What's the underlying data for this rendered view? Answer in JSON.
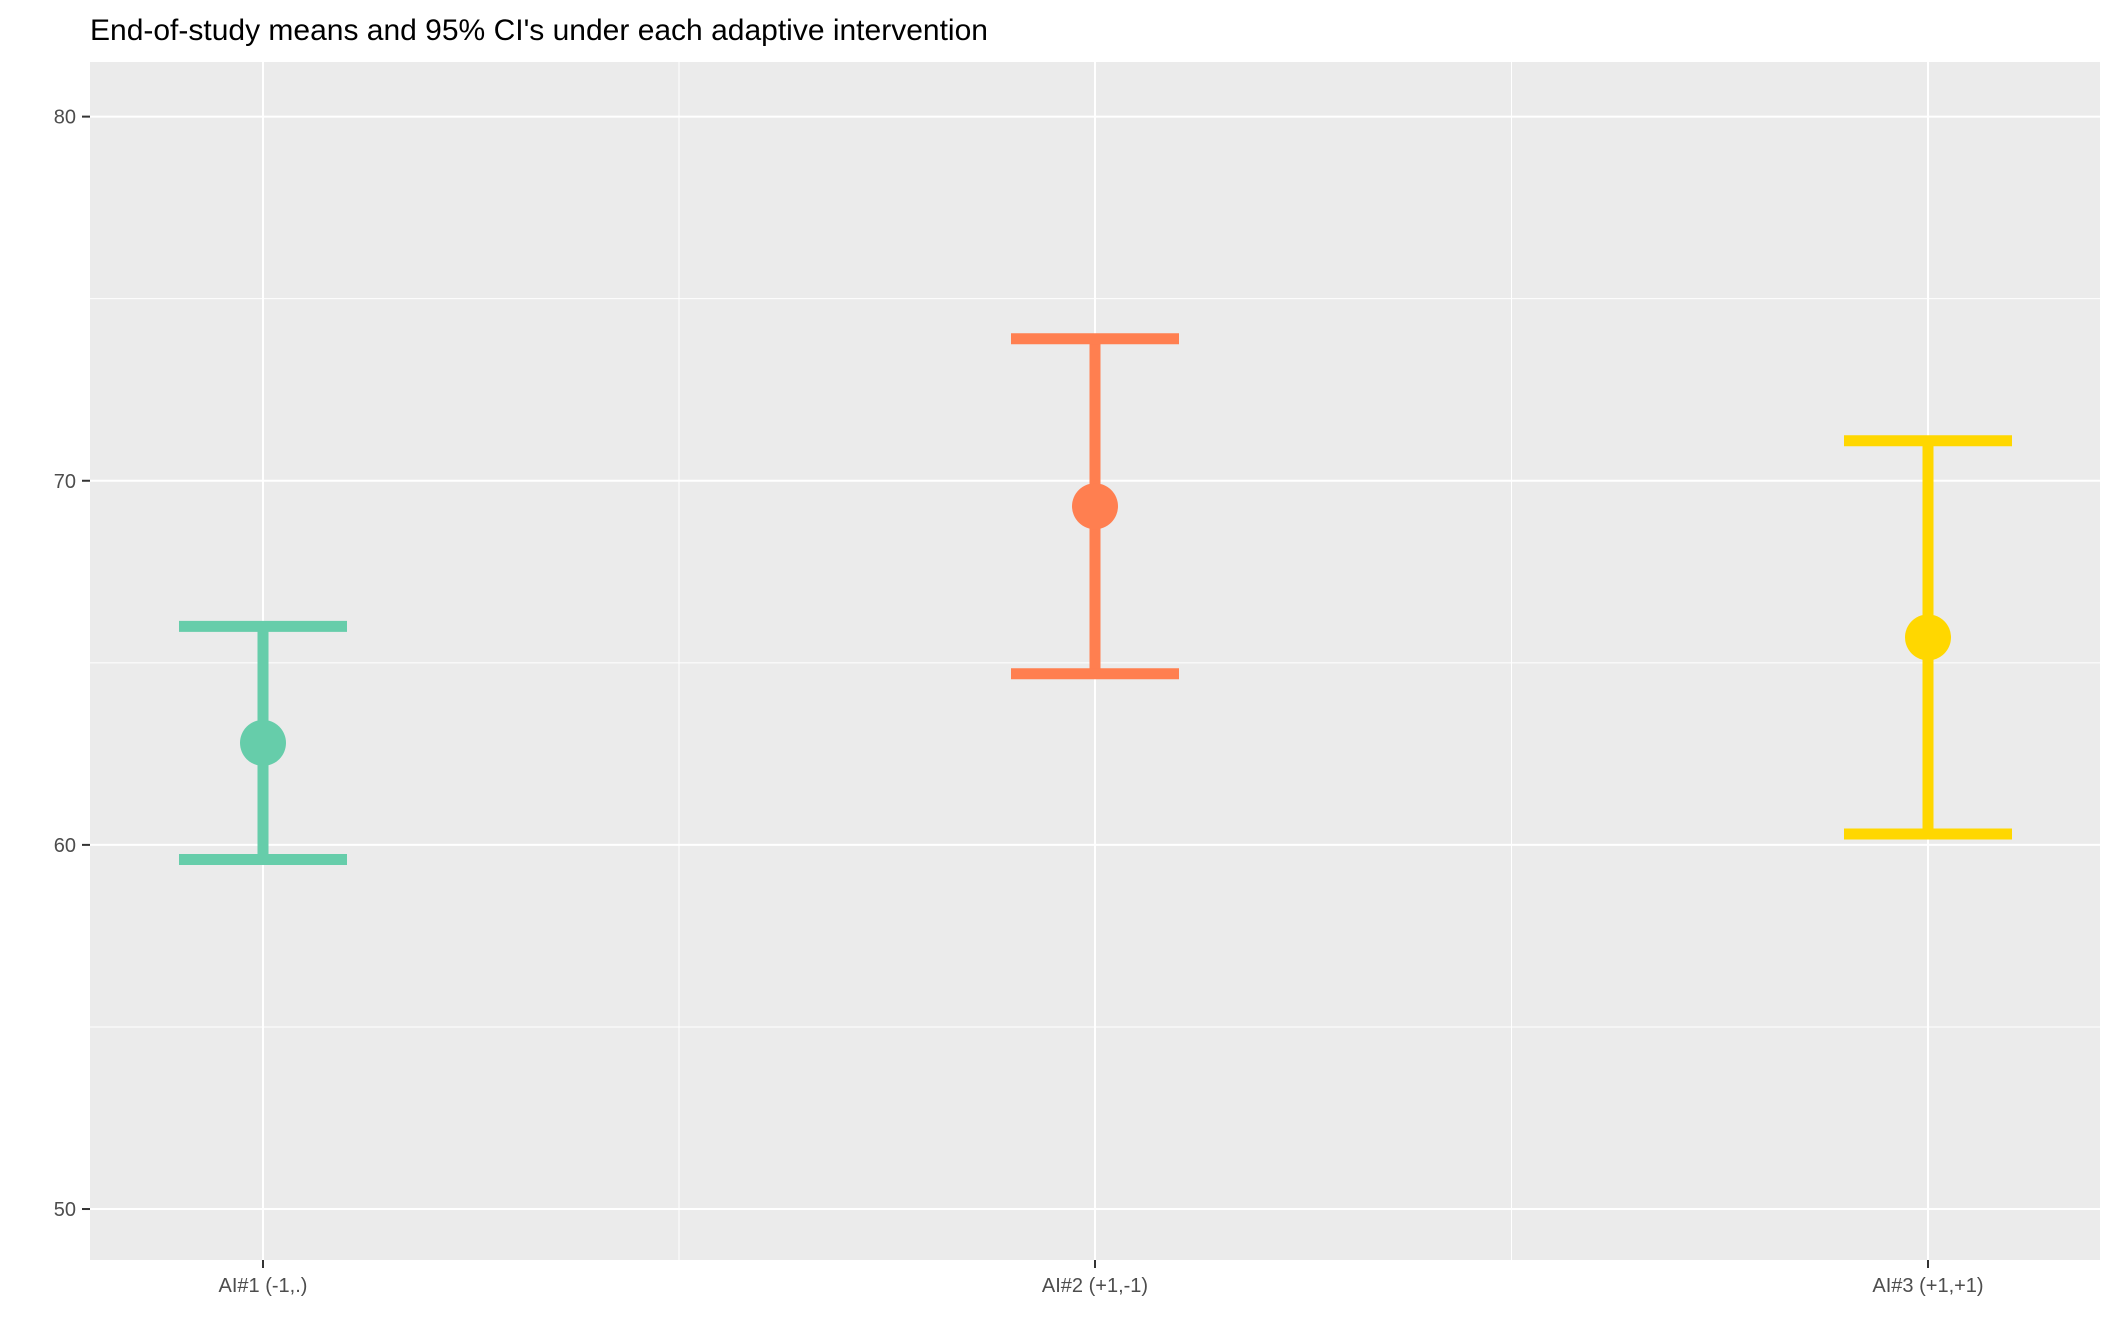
{
  "chart_data": {
    "type": "errorbar",
    "title": "End-of-study means and 95% CI's under each adaptive intervention",
    "xlabel": "",
    "ylabel": "",
    "categories": [
      "AI#1 (-1,.)",
      "AI#2 (+1,-1)",
      "AI#3 (+1,+1)"
    ],
    "points": [
      {
        "category": "AI#1 (-1,.)",
        "mean": 62.8,
        "lower": 59.6,
        "upper": 66.0,
        "color": "#66CDAA"
      },
      {
        "category": "AI#2 (+1,-1)",
        "mean": 69.3,
        "lower": 64.7,
        "upper": 73.9,
        "color": "#FF7F50"
      },
      {
        "category": "AI#3 (+1,+1)",
        "mean": 65.7,
        "lower": 60.3,
        "upper": 71.1,
        "color": "#FFD700"
      }
    ],
    "ylim": [
      48.6,
      81.5
    ],
    "yticks": [
      50,
      60,
      70,
      80
    ],
    "ytick_labels": [
      "50",
      "60",
      "70",
      "80"
    ],
    "grid": true,
    "legend": "none",
    "colors": {
      "panel_background": "#EBEBEB",
      "grid": "#FFFFFF",
      "tick_text": "#4D4D4D",
      "title_text": "#000000"
    }
  }
}
